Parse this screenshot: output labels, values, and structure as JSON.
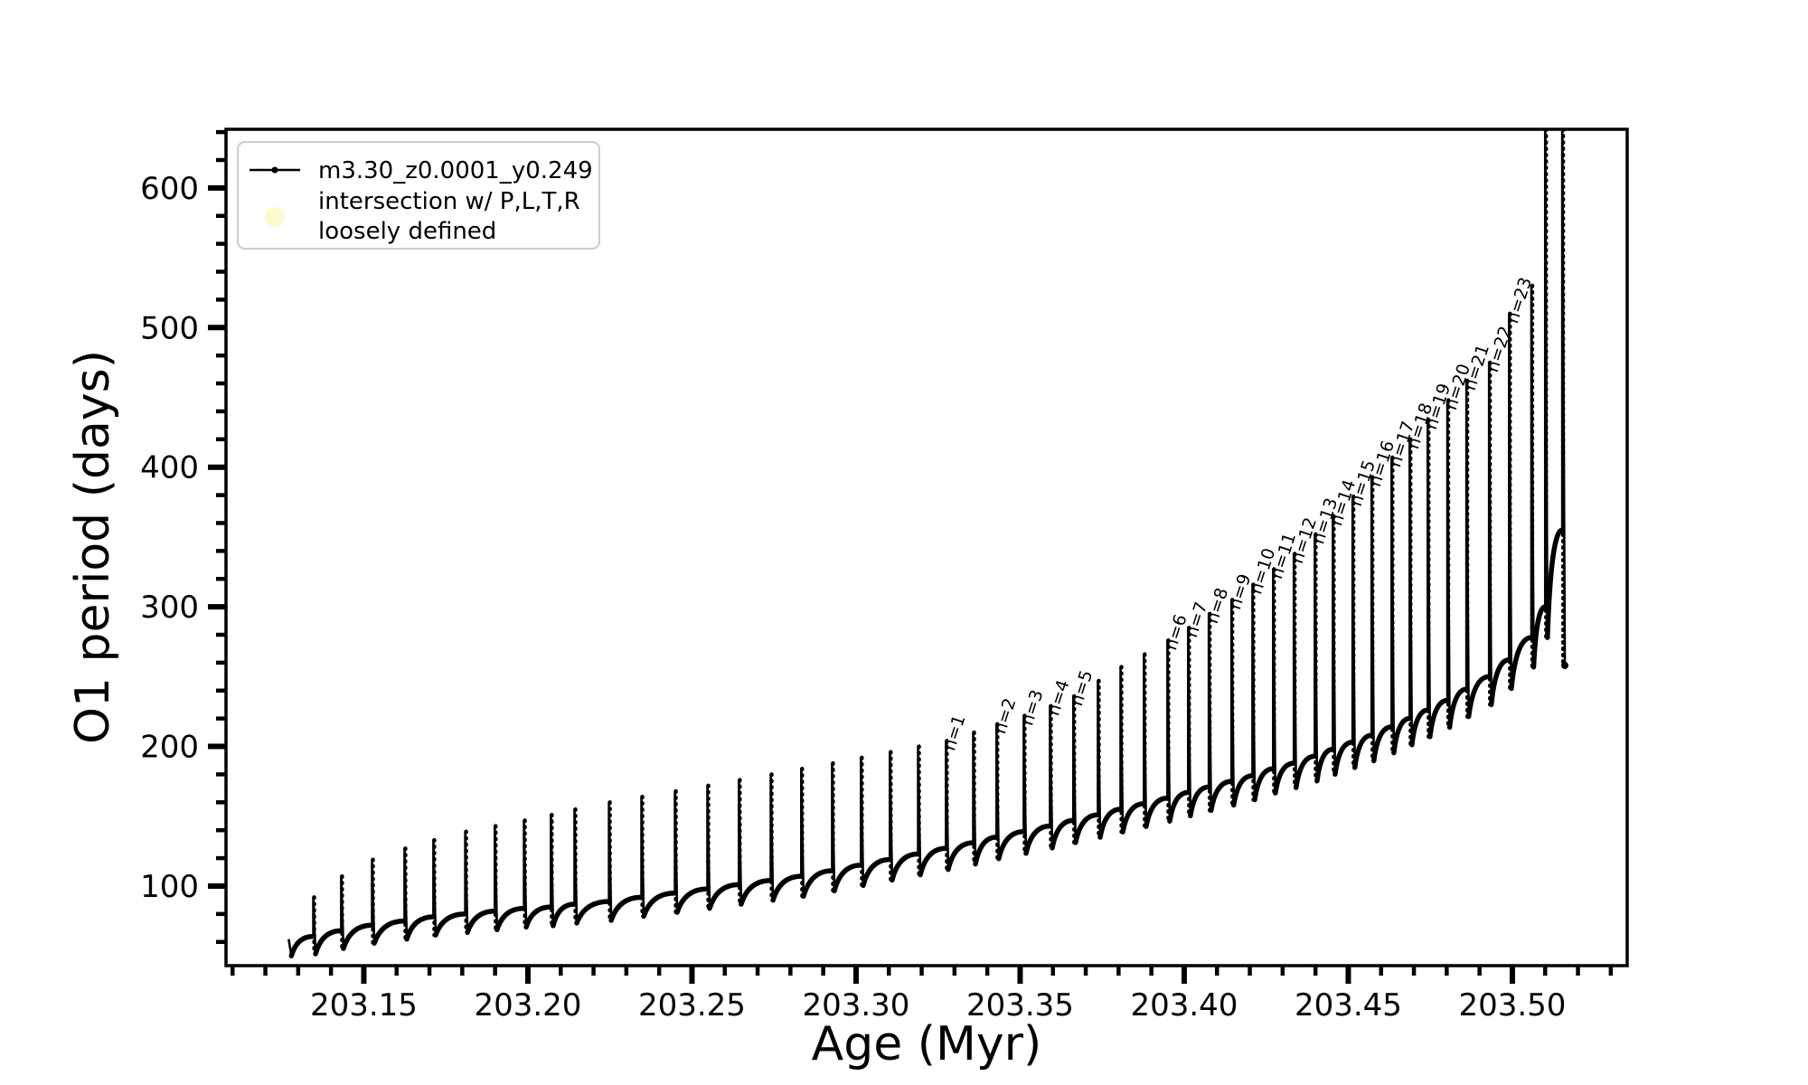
{
  "chart_data": {
    "type": "line",
    "title": "",
    "xlabel": "Age (Myr)",
    "ylabel": "O1 period (days)",
    "xlim": [
      203.108,
      203.535
    ],
    "ylim": [
      43,
      642
    ],
    "grid": false,
    "legend_position": "upper left",
    "x_major_ticks": [
      203.15,
      203.2,
      203.25,
      203.3,
      203.35,
      203.4,
      203.45,
      203.5
    ],
    "x_major_tick_labels": [
      "203.15",
      "203.20",
      "203.25",
      "203.30",
      "203.35",
      "203.40",
      "203.45",
      "203.50"
    ],
    "x_minor_tick_step": 0.01,
    "y_major_ticks": [
      100,
      200,
      300,
      400,
      500,
      600
    ],
    "y_major_tick_labels": [
      "100",
      "200",
      "300",
      "400",
      "500",
      "600"
    ],
    "y_minor_tick_step": 20,
    "series_name": "m3.30_z0.0001_y0.249",
    "series_color": "#000000",
    "curve_start": {
      "x": 203.1271,
      "y": 62,
      "dip": 50
    },
    "curve_end": {
      "x": 203.516,
      "y": 258
    },
    "pulse_fields": [
      "age_myr",
      "base_period_days",
      "peak_period_days",
      "n_label"
    ],
    "pulses": [
      [
        203.1346,
        64,
        92,
        0
      ],
      [
        203.1431,
        68,
        107,
        0
      ],
      [
        203.1525,
        72,
        119,
        0
      ],
      [
        203.1624,
        75,
        127,
        0
      ],
      [
        203.1712,
        78,
        133,
        0
      ],
      [
        203.1809,
        80,
        139,
        0
      ],
      [
        203.1899,
        82,
        143,
        0
      ],
      [
        203.1988,
        84,
        147,
        0
      ],
      [
        203.207,
        85,
        151,
        0
      ],
      [
        203.2142,
        87,
        155,
        0
      ],
      [
        203.2247,
        89,
        160,
        0
      ],
      [
        203.2346,
        92,
        164,
        0
      ],
      [
        203.2448,
        95,
        168,
        0
      ],
      [
        203.2547,
        98,
        172,
        0
      ],
      [
        203.2643,
        101,
        176,
        0
      ],
      [
        203.274,
        104,
        180,
        0
      ],
      [
        203.2833,
        107,
        184,
        0
      ],
      [
        203.2927,
        111,
        188,
        0
      ],
      [
        203.3015,
        115,
        192,
        0
      ],
      [
        203.3103,
        119,
        196,
        0
      ],
      [
        203.3189,
        123,
        200,
        0
      ],
      [
        203.3274,
        127,
        204,
        1
      ],
      [
        203.3357,
        131,
        210,
        0
      ],
      [
        203.3428,
        135,
        216,
        2
      ],
      [
        203.3511,
        139,
        222,
        3
      ],
      [
        203.3591,
        143,
        229,
        4
      ],
      [
        203.3662,
        147,
        236,
        5
      ],
      [
        203.3737,
        151,
        247,
        0
      ],
      [
        203.3806,
        155,
        257,
        0
      ],
      [
        203.3877,
        159,
        266,
        0
      ],
      [
        203.3949,
        163,
        276,
        6
      ],
      [
        203.4012,
        167,
        285,
        7
      ],
      [
        203.4075,
        171,
        295,
        8
      ],
      [
        203.4144,
        175,
        305,
        9
      ],
      [
        203.4208,
        179,
        316,
        10
      ],
      [
        203.4271,
        184,
        327,
        11
      ],
      [
        203.4334,
        188,
        338,
        12
      ],
      [
        203.4398,
        193,
        352,
        13
      ],
      [
        203.4453,
        198,
        365,
        14
      ],
      [
        203.4513,
        203,
        379,
        15
      ],
      [
        203.4571,
        208,
        393,
        16
      ],
      [
        203.4632,
        214,
        407,
        17
      ],
      [
        203.4687,
        220,
        420,
        18
      ],
      [
        203.4742,
        226,
        434,
        19
      ],
      [
        203.4802,
        233,
        448,
        20
      ],
      [
        203.486,
        241,
        462,
        21
      ],
      [
        203.4929,
        250,
        475,
        22
      ],
      [
        203.499,
        262,
        510,
        23
      ],
      [
        203.5058,
        278,
        530,
        0
      ],
      [
        203.51,
        300,
        660,
        0
      ],
      [
        203.5152,
        355,
        660,
        0
      ]
    ],
    "annotation_prefix": "n=",
    "annotation_rotation_deg": -72
  },
  "legend": {
    "items": [
      {
        "label": "m3.30_z0.0001_y0.249",
        "marker": "line-with-dot",
        "color": "#000000"
      },
      {
        "lines": [
          "intersection w/ P,L,T,R",
          "loosely defined"
        ],
        "marker": "filled-circle",
        "color": "#fbfbcf"
      }
    ],
    "border_color": "#cccccc",
    "background": "#ffffff"
  },
  "axes_text": {
    "xlabel": "Age (Myr)",
    "ylabel": "O1 period (days)"
  },
  "colors": {
    "foreground": "#000000",
    "background": "#ffffff",
    "legend_marker_yellow": "#fbfbcf",
    "legend_border": "#cccccc"
  }
}
